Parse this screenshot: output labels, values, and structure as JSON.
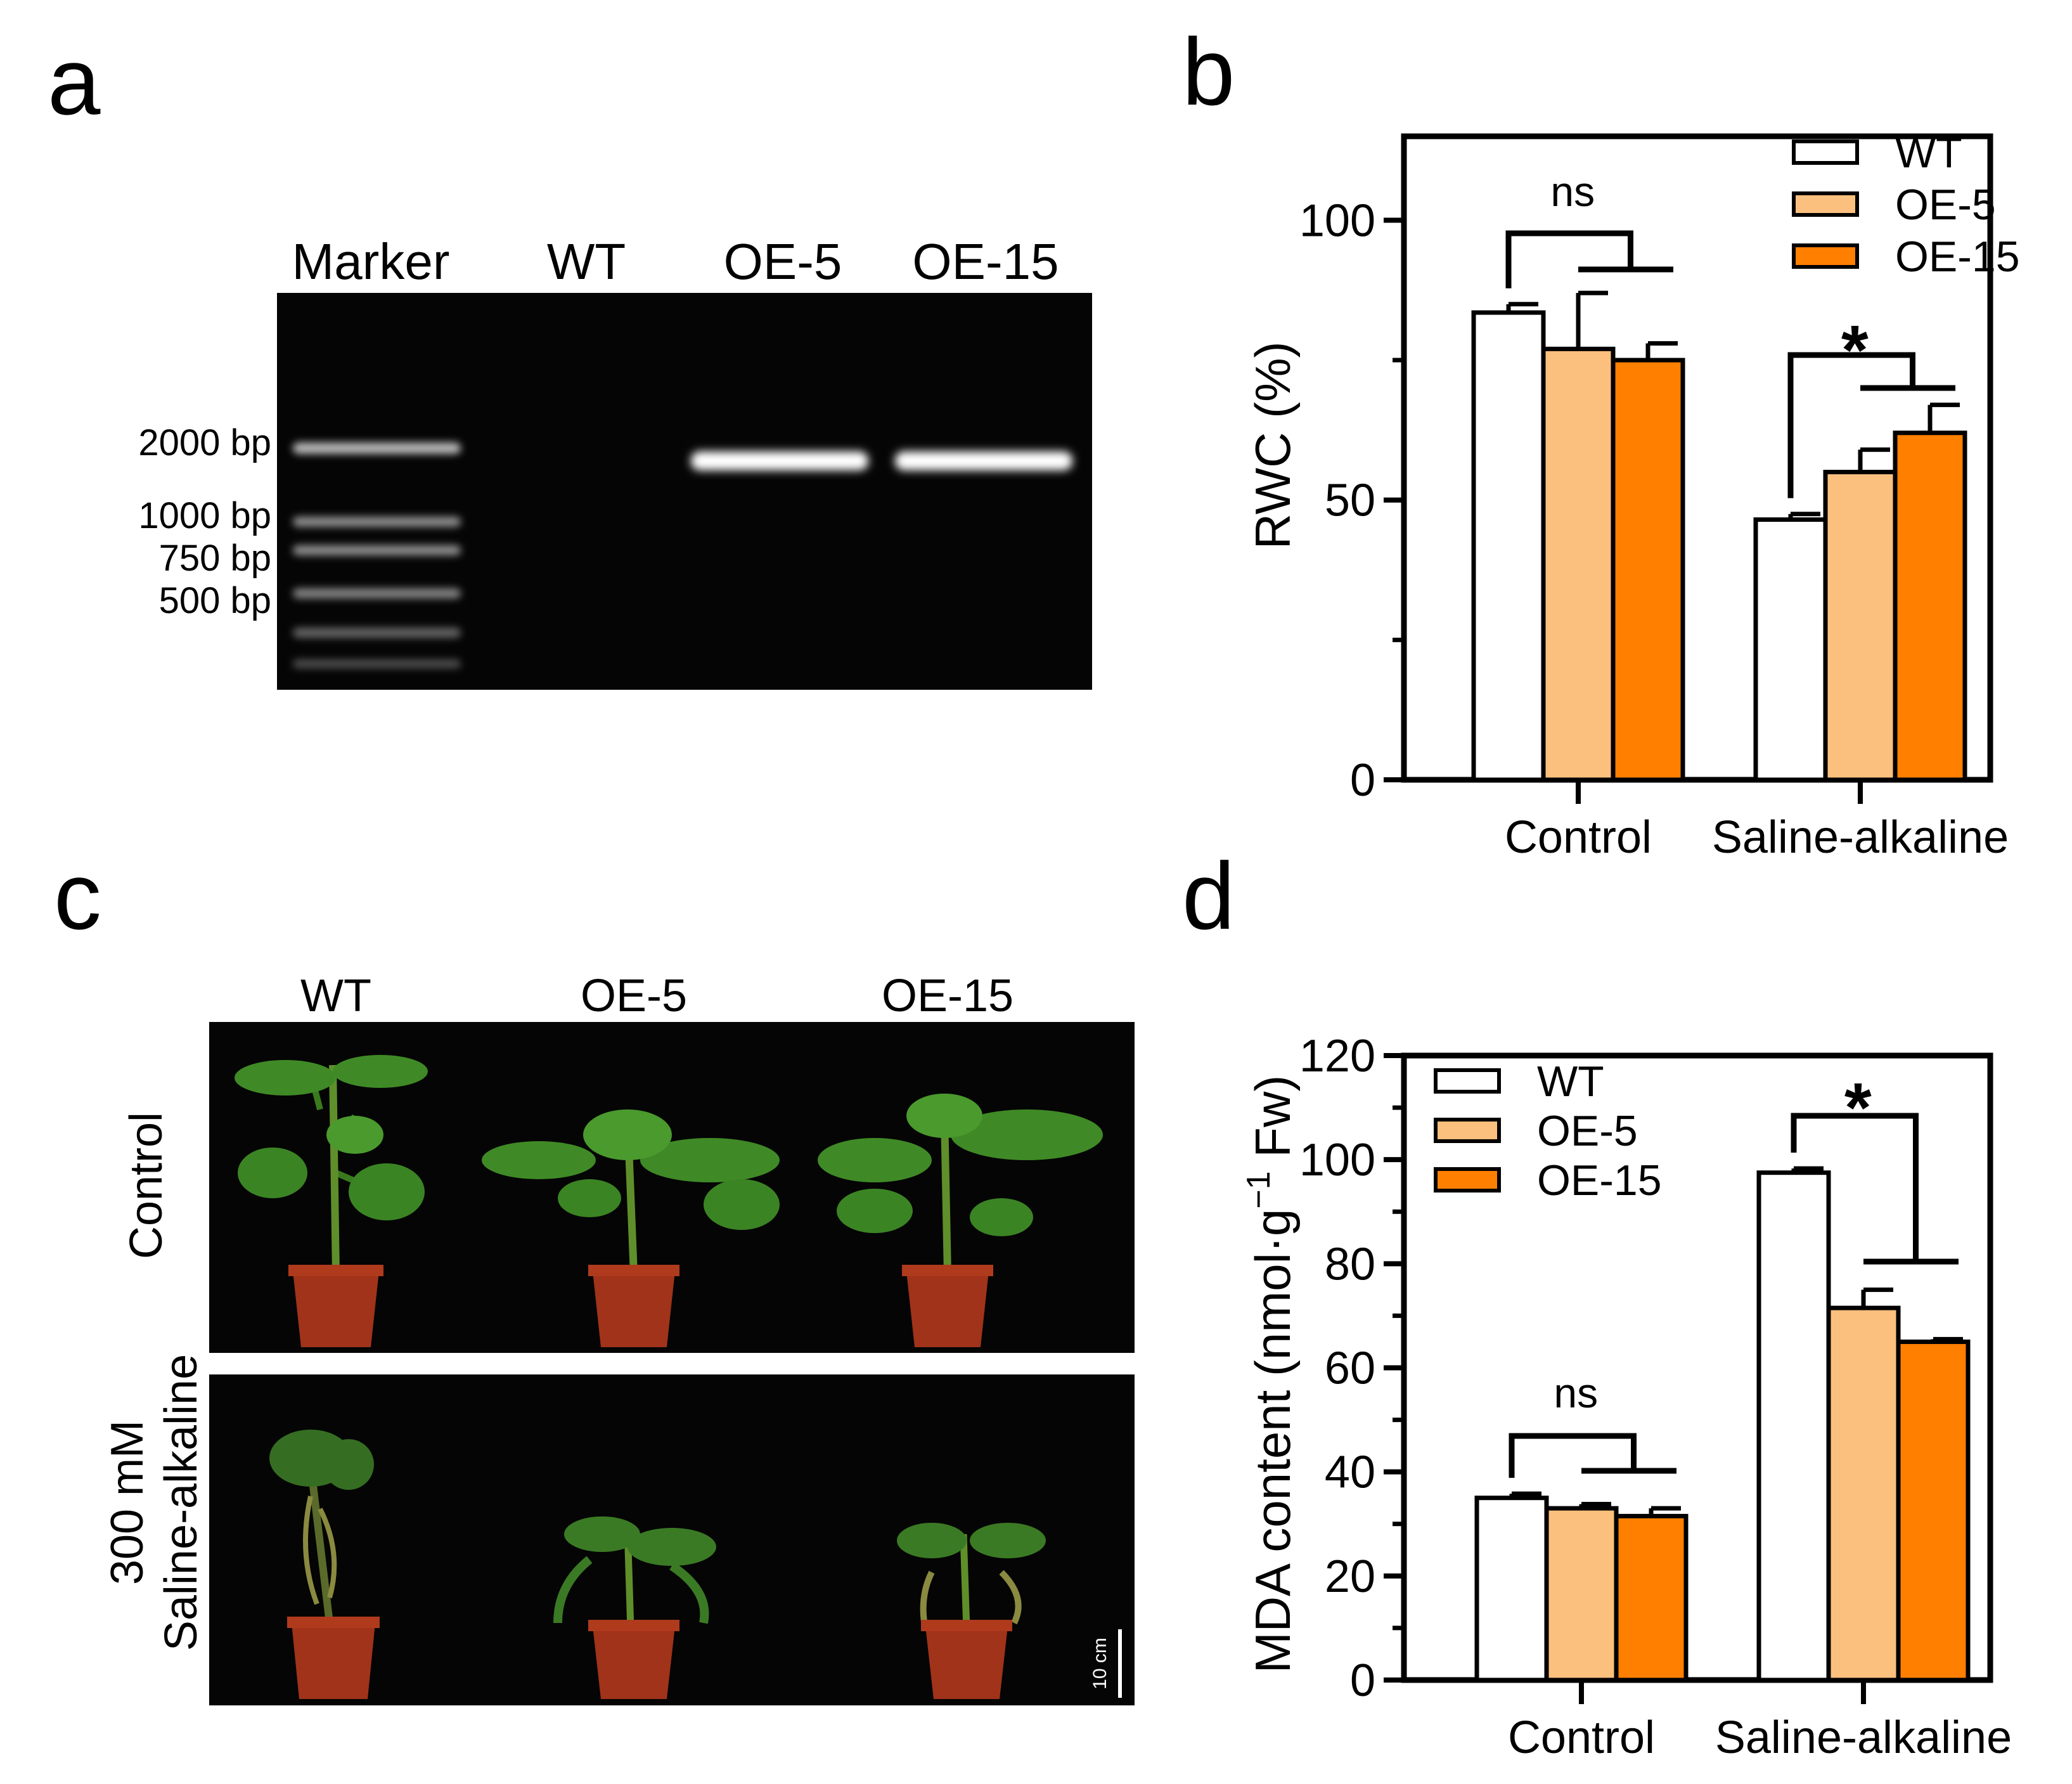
{
  "panels": {
    "a": {
      "letter": "a",
      "lanes": [
        "Marker",
        "WT",
        "OE-5",
        "OE-15"
      ],
      "markers": [
        "2000 bp",
        "1000 bp",
        "750 bp",
        "500 bp"
      ]
    },
    "b": {
      "letter": "b"
    },
    "c": {
      "letter": "c",
      "columns": [
        "WT",
        "OE-5",
        "OE-15"
      ],
      "rows": {
        "control": "Control",
        "treat_line1": "300 mM",
        "treat_line2": "Saline-alkaline"
      },
      "scale_bar": "10 cm"
    },
    "d": {
      "letter": "d"
    }
  },
  "colors": {
    "WT": "#ffffff",
    "OE-5": "#fcc07e",
    "OE-15": "#ff7f00",
    "stroke": "#000000"
  },
  "chart_data": [
    {
      "id": "rwc",
      "type": "bar",
      "categories": [
        "Control",
        "Saline-alkaline"
      ],
      "series": [
        {
          "name": "WT",
          "values": [
            83.5,
            46.5
          ],
          "errors": [
            1.5,
            1.0
          ]
        },
        {
          "name": "OE-5",
          "values": [
            77.0,
            55.0
          ],
          "errors": [
            10.0,
            4.0
          ]
        },
        {
          "name": "OE-15",
          "values": [
            75.0,
            62.0
          ],
          "errors": [
            3.0,
            5.0
          ]
        }
      ],
      "ylabel": "RWC (%)",
      "ylim": [
        0,
        115
      ],
      "yticks": [
        0,
        50,
        100
      ],
      "yminor": [
        25,
        75
      ],
      "legend": "top-right",
      "annotations": [
        "ns",
        "*"
      ]
    },
    {
      "id": "mda",
      "type": "bar",
      "categories": [
        "Control",
        "Saline-alkaline"
      ],
      "series": [
        {
          "name": "WT",
          "values": [
            35.0,
            97.5
          ],
          "errors": [
            0.8,
            0.8
          ]
        },
        {
          "name": "OE-5",
          "values": [
            33.0,
            71.5
          ],
          "errors": [
            0.8,
            3.5
          ]
        },
        {
          "name": "OE-15",
          "values": [
            31.5,
            65.0
          ],
          "errors": [
            1.5,
            0.5
          ]
        }
      ],
      "ylabel_parts": [
        "MDA content (nmol·g",
        "−1",
        " Fw)"
      ],
      "ylim": [
        0,
        120
      ],
      "yticks": [
        0,
        20,
        40,
        60,
        80,
        100,
        120
      ],
      "yminor": [
        10,
        30,
        50,
        70,
        90,
        110
      ],
      "legend": "top-left",
      "annotations": [
        "ns",
        "*"
      ]
    }
  ]
}
